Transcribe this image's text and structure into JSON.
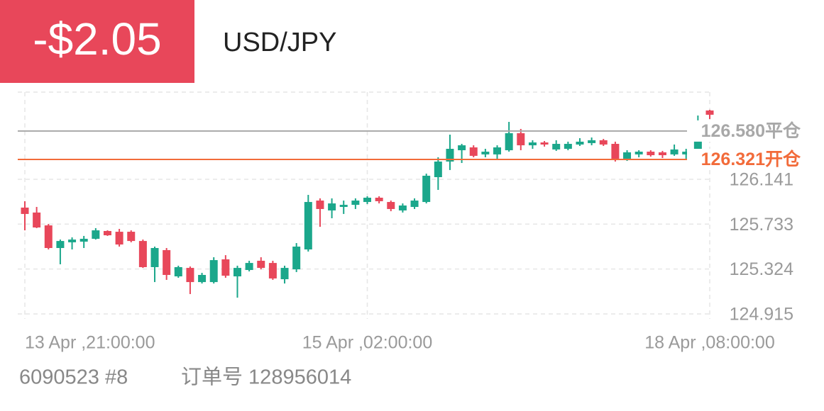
{
  "header": {
    "pnl": "-$2.05",
    "symbol": "USD/JPY"
  },
  "footer": {
    "account": "6090523 #8",
    "order": "订单号 128956014"
  },
  "chart_data": {
    "type": "candlestick",
    "categories": [
      "13 Apr ,21:00:00",
      null,
      null,
      null,
      null,
      null,
      null,
      null,
      null,
      null,
      null,
      null,
      null,
      null,
      null,
      null,
      null,
      null,
      null,
      null,
      null,
      null,
      null,
      null,
      null,
      null,
      null,
      null,
      null,
      "15 Apr ,02:00:00",
      null,
      null,
      null,
      null,
      null,
      null,
      null,
      null,
      null,
      null,
      null,
      null,
      null,
      null,
      null,
      null,
      null,
      null,
      null,
      null,
      null,
      null,
      null,
      null,
      null,
      null,
      null,
      null,
      "18 Apr ,08:00:00"
    ],
    "open": [
      125.883,
      125.838,
      125.721,
      125.515,
      125.567,
      125.573,
      125.599,
      125.67,
      125.663,
      125.663,
      125.579,
      125.341,
      125.496,
      125.257,
      125.334,
      125.205,
      125.205,
      125.412,
      125.257,
      125.315,
      125.399,
      125.379,
      125.231,
      125.321,
      125.502,
      125.947,
      125.857,
      125.889,
      125.908,
      125.934,
      125.973,
      125.934,
      125.857,
      125.889,
      125.934,
      126.16,
      126.302,
      126.405,
      126.431,
      126.367,
      126.367,
      126.405,
      126.56,
      126.45,
      126.476,
      126.412,
      126.418,
      126.457,
      126.47,
      126.496,
      126.463,
      126.328,
      126.367,
      126.392,
      126.386,
      126.367,
      126.367,
      126.367,
      126.767
    ],
    "high": [
      125.941,
      125.889,
      125.734,
      125.592,
      125.612,
      125.625,
      125.696,
      125.676,
      125.689,
      125.676,
      125.592,
      125.528,
      125.515,
      125.354,
      125.347,
      125.289,
      125.431,
      125.45,
      125.354,
      125.399,
      125.431,
      125.399,
      125.354,
      125.56,
      125.999,
      125.967,
      125.967,
      125.947,
      125.967,
      125.986,
      125.986,
      125.947,
      125.921,
      125.967,
      126.192,
      126.341,
      126.547,
      126.463,
      126.45,
      126.418,
      126.45,
      126.663,
      126.599,
      126.496,
      126.489,
      126.496,
      126.483,
      126.515,
      126.521,
      126.508,
      126.483,
      126.405,
      126.405,
      126.405,
      126.399,
      126.457,
      126.418,
      126.721,
      126.773
    ],
    "low": [
      125.676,
      125.696,
      125.502,
      125.367,
      125.502,
      125.515,
      125.592,
      125.625,
      125.528,
      125.567,
      125.334,
      125.205,
      125.225,
      125.244,
      125.096,
      125.192,
      125.192,
      125.244,
      125.063,
      125.302,
      125.321,
      125.225,
      125.192,
      125.296,
      125.483,
      125.708,
      125.786,
      125.825,
      125.87,
      125.915,
      125.921,
      125.85,
      125.838,
      125.87,
      125.921,
      126.044,
      126.225,
      126.289,
      126.341,
      126.341,
      126.321,
      126.392,
      126.405,
      126.418,
      126.438,
      126.399,
      126.405,
      126.444,
      126.45,
      126.444,
      126.302,
      126.308,
      126.341,
      126.347,
      126.334,
      126.354,
      126.321,
      126.341,
      126.689
    ],
    "close": [
      125.825,
      125.702,
      125.515,
      125.579,
      125.592,
      125.599,
      125.676,
      125.631,
      125.547,
      125.579,
      125.341,
      125.515,
      125.27,
      125.341,
      125.205,
      125.27,
      125.405,
      125.263,
      125.334,
      125.379,
      125.334,
      125.238,
      125.334,
      125.528,
      125.934,
      125.87,
      125.921,
      125.908,
      125.947,
      125.973,
      125.941,
      125.87,
      125.902,
      125.947,
      126.173,
      126.302,
      126.418,
      126.45,
      126.354,
      126.392,
      126.431,
      126.56,
      126.45,
      126.476,
      126.457,
      126.463,
      126.463,
      126.483,
      126.496,
      126.457,
      126.321,
      126.386,
      126.392,
      126.36,
      126.36,
      126.412,
      126.392,
      126.496,
      126.728
    ],
    "up_color": "#1ba78b",
    "down_color": "#e8475a",
    "reference_lines": [
      {
        "name": "平仓",
        "value": 126.58,
        "value_label": "126.580",
        "color": "#a8a8a8"
      },
      {
        "name": "开仓",
        "value": 126.321,
        "value_label": "126.321",
        "color": "#f26b3a"
      }
    ],
    "ylim": [
      124.87,
      126.934
    ],
    "yticks": [
      124.915,
      125.324,
      125.733,
      126.141
    ],
    "grid": true
  }
}
